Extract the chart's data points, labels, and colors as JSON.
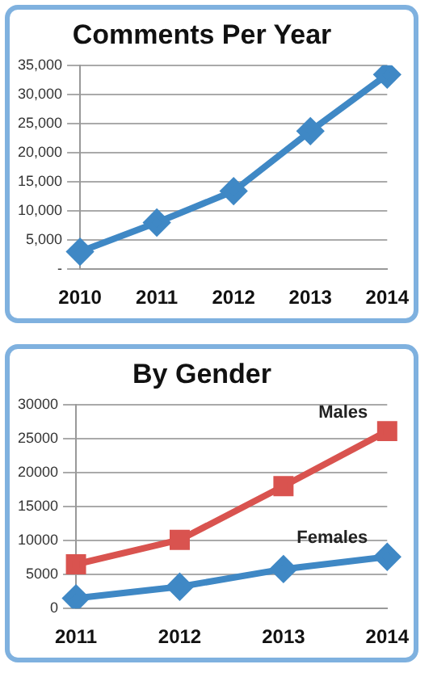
{
  "chart_data": [
    {
      "type": "line",
      "title": "Comments Per Year",
      "categories": [
        "2010",
        "2011",
        "2012",
        "2013",
        "2014"
      ],
      "series": [
        {
          "color": "#3f88c5",
          "marker": "diamond",
          "values": [
            3000,
            8000,
            13400,
            23700,
            33400
          ]
        }
      ],
      "ylim": [
        0,
        35000
      ],
      "yticks": [
        {
          "value": 0,
          "label": "-"
        },
        {
          "value": 5000,
          "label": "5,000"
        },
        {
          "value": 10000,
          "label": "10,000"
        },
        {
          "value": 15000,
          "label": "15,000"
        },
        {
          "value": 20000,
          "label": "20,000"
        },
        {
          "value": 25000,
          "label": "25,000"
        },
        {
          "value": 30000,
          "label": "30,000"
        },
        {
          "value": 35000,
          "label": "35,000"
        }
      ],
      "grid": "y",
      "legend": false
    },
    {
      "type": "line",
      "title": "By Gender",
      "categories": [
        "2011",
        "2012",
        "2013",
        "2014"
      ],
      "series": [
        {
          "name": "Males",
          "color": "#d9534f",
          "marker": "square",
          "values": [
            6500,
            10100,
            18000,
            26100
          ]
        },
        {
          "name": "Females",
          "color": "#3f88c5",
          "marker": "diamond",
          "values": [
            1500,
            3200,
            5800,
            7600
          ]
        }
      ],
      "ylim": [
        0,
        30000
      ],
      "yticks": [
        0,
        5000,
        10000,
        15000,
        20000,
        25000,
        30000
      ],
      "grid": "y",
      "legend": false
    }
  ]
}
